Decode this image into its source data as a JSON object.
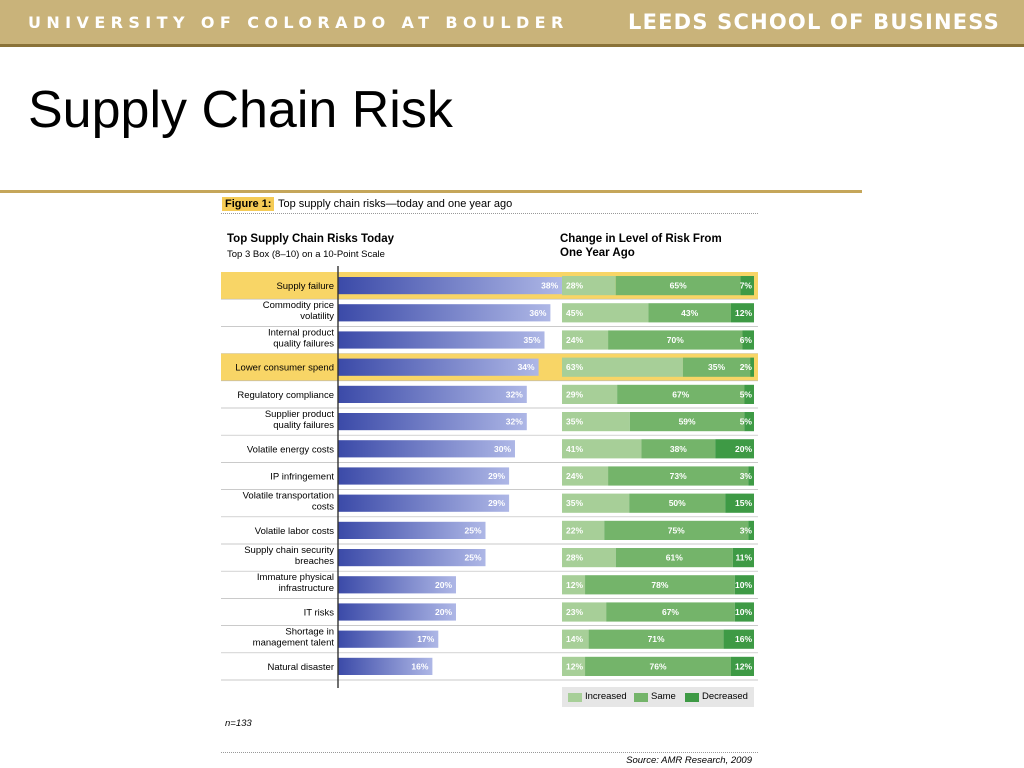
{
  "header": {
    "university": "UNIVERSITY OF COLORADO AT BOULDER",
    "school": "LEEDS SCHOOL OF BUSINESS"
  },
  "slide": {
    "title": "Supply Chain Risk"
  },
  "figure": {
    "label": "Figure 1:",
    "caption": "Top supply chain risks—today and one year ago",
    "left_title": "Top Supply Chain Risks Today",
    "left_subtitle": "Top 3 Box (8–10) on a 10-Point Scale",
    "right_title_line1": "Change in Level of Risk From",
    "right_title_line2": "One Year Ago",
    "n_note": "n=133",
    "source": "Source: AMR Research, 2009"
  },
  "colors": {
    "bar_dark": "#3b4aa8",
    "bar_light": "#aeb7e6",
    "highlight": "#f8d566",
    "increased": "#a7cf98",
    "same": "#74b46a",
    "decreased": "#3e9a45",
    "brand_gold": "#c9b37a"
  },
  "chart_data": [
    {
      "type": "bar",
      "orientation": "horizontal",
      "title": "Top Supply Chain Risks Today",
      "subtitle": "Top 3 Box (8–10) on a 10-Point Scale",
      "highlighted": [
        "Supply failure",
        "Lower consumer spend"
      ],
      "categories": [
        [
          "Supply failure"
        ],
        [
          "Commodity price",
          "volatility"
        ],
        [
          "Internal product",
          "quality failures"
        ],
        [
          "Lower consumer spend"
        ],
        [
          "Regulatory compliance"
        ],
        [
          "Supplier product",
          "quality failures"
        ],
        [
          "Volatile energy costs"
        ],
        [
          "IP infringement"
        ],
        [
          "Volatile transportation",
          "costs"
        ],
        [
          "Volatile labor costs"
        ],
        [
          "Supply chain security",
          "breaches"
        ],
        [
          "Immature physical",
          "infrastructure"
        ],
        [
          "IT risks"
        ],
        [
          "Shortage in",
          "management talent"
        ],
        [
          "Natural disaster"
        ]
      ],
      "values": [
        38,
        36,
        35,
        34,
        32,
        32,
        30,
        29,
        29,
        25,
        25,
        20,
        20,
        17,
        16
      ]
    },
    {
      "type": "bar",
      "orientation": "horizontal",
      "stacked": true,
      "title": "Change in Level of Risk From One Year Ago",
      "legend": "bottom-right",
      "series": [
        {
          "name": "Increased",
          "values": [
            28,
            45,
            24,
            63,
            29,
            35,
            41,
            24,
            35,
            22,
            28,
            12,
            23,
            14,
            12
          ]
        },
        {
          "name": "Same",
          "values": [
            65,
            43,
            70,
            35,
            67,
            59,
            38,
            73,
            50,
            75,
            61,
            78,
            67,
            71,
            76
          ]
        },
        {
          "name": "Decreased",
          "values": [
            7,
            12,
            6,
            2,
            5,
            5,
            20,
            3,
            15,
            3,
            11,
            10,
            10,
            16,
            12
          ]
        }
      ]
    }
  ]
}
